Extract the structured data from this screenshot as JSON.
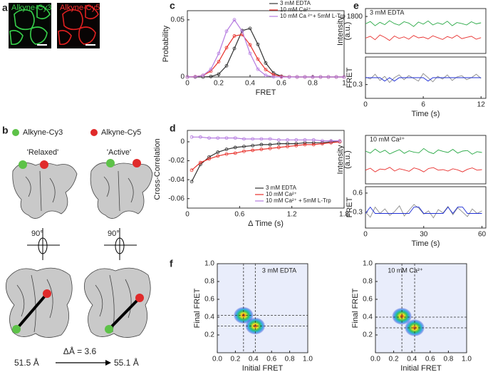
{
  "panel_labels": [
    "a",
    "b",
    "c",
    "d",
    "e",
    "f"
  ],
  "panel_a": {
    "channels": [
      "Alkyne-Cy3",
      "Alkyne-Cy5"
    ]
  },
  "panel_b": {
    "legend": [
      "Alkyne-Cy3",
      "Alkyne-Cy5"
    ],
    "states": [
      "'Relaxed'",
      "'Active'"
    ],
    "rotation": [
      "90°",
      "90°"
    ],
    "distances": [
      "51.5 Å",
      "55.1 Å"
    ],
    "change": "ΔÅ = 3.6"
  },
  "chart_data": [
    {
      "type": "line",
      "x_label": "FRET",
      "y_label": "Probability",
      "markers": true,
      "legend": "upper right",
      "x": [
        0,
        0.05,
        0.1,
        0.15,
        0.2,
        0.25,
        0.3,
        0.35,
        0.4,
        0.45,
        0.5,
        0.55,
        0.6,
        0.65,
        0.7,
        0.75,
        0.8,
        0.85,
        0.9,
        0.95,
        1
      ],
      "xlim": [
        0,
        1
      ],
      "xticks": [
        0,
        0.2,
        0.4,
        0.6,
        0.8,
        1
      ],
      "ylim": [
        0,
        0.058
      ],
      "yticks": [
        0,
        0.05
      ],
      "series": [
        {
          "name": "3 mM EDTA",
          "color": "#333333",
          "values": [
            0,
            0,
            0,
            0.0004,
            0.0025,
            0.0098,
            0.0249,
            0.0406,
            0.0425,
            0.0285,
            0.0122,
            0.0034,
            0.0006,
            0.0001,
            0,
            0,
            0,
            0,
            0,
            0,
            0
          ]
        },
        {
          "name": "10 mM Ca²⁺",
          "color": "#e8302a",
          "values": [
            0,
            0.0003,
            0.0014,
            0.0051,
            0.0134,
            0.0256,
            0.0359,
            0.0371,
            0.0281,
            0.0156,
            0.0064,
            0.0019,
            0.0004,
            0.0001,
            0,
            0,
            0,
            0,
            0,
            0,
            0
          ]
        },
        {
          "name": "10 mM Ca ²⁺+ 5mM L-Trp",
          "color": "#b57be0",
          "values": [
            0,
            0.0002,
            0.0014,
            0.0068,
            0.0206,
            0.04,
            0.05,
            0.04,
            0.0206,
            0.0068,
            0.0014,
            0.0002,
            0,
            0,
            0,
            0,
            0,
            0,
            0,
            0,
            0
          ]
        }
      ]
    },
    {
      "type": "line",
      "x_label": "Δ Time (s)",
      "y_label": "Cross-Correlation",
      "markers": true,
      "legend": "lower right",
      "x": [
        0.05,
        0.15,
        0.25,
        0.35,
        0.45,
        0.55,
        0.65,
        0.75,
        0.85,
        0.95,
        1.05,
        1.15,
        1.25,
        1.35,
        1.45,
        1.55,
        1.65,
        1.75
      ],
      "xlim": [
        0,
        1.8
      ],
      "xticks": [
        0,
        0.6,
        1.2,
        1.8
      ],
      "ylim": [
        -0.07,
        0.012
      ],
      "yticks": [
        -0.06,
        -0.04,
        -0.02,
        0
      ],
      "series": [
        {
          "name": "3 mM EDTA",
          "color": "#333333",
          "values": [
            -0.042,
            -0.024,
            -0.016,
            -0.011,
            -0.008,
            -0.006,
            -0.005,
            -0.004,
            -0.003,
            -0.003,
            -0.002,
            -0.002,
            -0.002,
            -0.001,
            -0.001,
            -0.001,
            0,
            0
          ]
        },
        {
          "name": "10 mM Ca²⁺",
          "color": "#e8302a",
          "values": [
            -0.03,
            -0.022,
            -0.018,
            -0.015,
            -0.013,
            -0.012,
            -0.01,
            -0.009,
            -0.008,
            -0.007,
            -0.006,
            -0.005,
            -0.004,
            -0.003,
            -0.003,
            -0.002,
            -0.001,
            0
          ]
        },
        {
          "name": "10 mM Ca²⁺ + 5mM L-Trp",
          "color": "#b57be0",
          "values": [
            0.005,
            0.005,
            0.004,
            0.004,
            0.004,
            0.004,
            0.003,
            0.003,
            0.003,
            0.003,
            0.002,
            0.002,
            0.002,
            0.002,
            0.002,
            0.001,
            0.001,
            0.001
          ]
        }
      ]
    },
    {
      "type": "line",
      "annotation": "3 mM EDTA",
      "y_label": [
        "Intensity",
        "(a.u.)"
      ],
      "x": [
        0,
        0.5,
        1,
        1.5,
        2,
        2.5,
        3,
        3.5,
        4,
        4.5,
        5,
        5.5,
        6,
        6.5,
        7,
        7.5,
        8,
        8.5,
        9,
        9.5,
        10,
        10.5,
        11,
        11.5,
        12
      ],
      "xlim": [
        0,
        12.5
      ],
      "ylim": [
        400,
        2100
      ],
      "yticks": [
        1800
      ],
      "series": [
        {
          "color": "#27a844",
          "values": [
            1520,
            1610,
            1450,
            1580,
            1490,
            1640,
            1530,
            1470,
            1600,
            1550,
            1420,
            1590,
            1510,
            1630,
            1480,
            1560,
            1500,
            1620,
            1450,
            1570,
            1530,
            1480,
            1600,
            1520,
            1560
          ]
        },
        {
          "color": "#e8312f",
          "values": [
            980,
            1050,
            920,
            1100,
            1010,
            890,
            1060,
            970,
            1030,
            940,
            1080,
            990,
            1020,
            950,
            1070,
            1000,
            930,
            1040,
            980,
            1090,
            960,
            1010,
            1050,
            940,
            1000
          ]
        }
      ]
    },
    {
      "type": "line",
      "x_label": "Time (s)",
      "y_label": "FRET",
      "x": [
        0,
        0.5,
        1,
        1.5,
        2,
        2.5,
        3,
        3.5,
        4,
        4.5,
        5,
        5.5,
        6,
        6.5,
        7,
        7.5,
        8,
        8.5,
        9,
        9.5,
        10,
        10.5,
        11,
        11.5,
        12
      ],
      "xlim": [
        0,
        12.5
      ],
      "xticks": [
        0,
        6,
        12
      ],
      "ylim": [
        0.1,
        0.7
      ],
      "yticks": [
        0.3
      ],
      "series": [
        {
          "color": "#8c8c8c",
          "values": [
            0.41,
            0.38,
            0.45,
            0.36,
            0.42,
            0.33,
            0.4,
            0.44,
            0.37,
            0.43,
            0.39,
            0.35,
            0.46,
            0.4,
            0.34,
            0.42,
            0.38,
            0.44,
            0.36,
            0.41,
            0.43,
            0.37,
            0.4,
            0.45,
            0.39
          ]
        },
        {
          "color": "#1f2fd6",
          "values": [
            0.4,
            0.4,
            0.4,
            0.4,
            0.35,
            0.4,
            0.35,
            0.4,
            0.4,
            0.4,
            0.4,
            0.4,
            0.4,
            0.35,
            0.4,
            0.4,
            0.4,
            0.4,
            0.4,
            0.4,
            0.4,
            0.4,
            0.4,
            0.4,
            0.4
          ]
        }
      ]
    },
    {
      "type": "line",
      "annotation": "10 mM Ca²⁺",
      "y_label": [
        "Intensity",
        "(a.u.)"
      ],
      "x": [
        0,
        2.5,
        5,
        7.5,
        10,
        12.5,
        15,
        17.5,
        20,
        22.5,
        25,
        27.5,
        30,
        32.5,
        35,
        37.5,
        40,
        42.5,
        45,
        47.5,
        50,
        52.5,
        55,
        57.5,
        60
      ],
      "xlim": [
        0,
        62
      ],
      "ylim": [
        200,
        1900
      ],
      "series": [
        {
          "color": "#27a844",
          "values": [
            1350,
            1280,
            1420,
            1300,
            1380,
            1250,
            1330,
            1400,
            1270,
            1360,
            1310,
            1290,
            1440,
            1320,
            1260,
            1390,
            1340,
            1300,
            1410,
            1280,
            1350,
            1370,
            1240,
            1330,
            1300
          ]
        },
        {
          "color": "#e8312f",
          "values": [
            680,
            750,
            620,
            720,
            700,
            780,
            650,
            730,
            690,
            640,
            760,
            710,
            620,
            740,
            770,
            680,
            700,
            650,
            730,
            690,
            620,
            710,
            760,
            680,
            700
          ]
        }
      ]
    },
    {
      "type": "line",
      "x_label": "Time (s)",
      "y_label": "FRET",
      "x": [
        0,
        2.5,
        5,
        7.5,
        10,
        12.5,
        15,
        17.5,
        20,
        22.5,
        25,
        27.5,
        30,
        32.5,
        35,
        37.5,
        40,
        42.5,
        45,
        47.5,
        50,
        52.5,
        55,
        57.5,
        60
      ],
      "xlim": [
        0,
        62
      ],
      "xticks": [
        0,
        30,
        60
      ],
      "ylim": [
        0.05,
        0.7
      ],
      "yticks": [
        0.3,
        0.6
      ],
      "series": [
        {
          "color": "#8c8c8c",
          "values": [
            0.3,
            0.22,
            0.38,
            0.28,
            0.35,
            0.25,
            0.31,
            0.4,
            0.24,
            0.33,
            0.42,
            0.36,
            0.27,
            0.32,
            0.21,
            0.34,
            0.29,
            0.39,
            0.26,
            0.37,
            0.3,
            0.23,
            0.35,
            0.28,
            0.32
          ]
        },
        {
          "color": "#1f2fd6",
          "values": [
            0.28,
            0.38,
            0.28,
            0.28,
            0.28,
            0.28,
            0.28,
            0.28,
            0.28,
            0.28,
            0.38,
            0.38,
            0.28,
            0.28,
            0.28,
            0.28,
            0.28,
            0.38,
            0.28,
            0.38,
            0.38,
            0.28,
            0.28,
            0.28,
            0.28
          ]
        }
      ]
    },
    {
      "type": "density",
      "annotation": "3 mM EDTA",
      "x_label": "Initial FRET",
      "y_label": "Final FRET",
      "xlim": [
        0,
        1
      ],
      "ylim": [
        0,
        1
      ],
      "xticks": [
        {
          "value": 0,
          "label": "0.0"
        },
        0.2,
        0.4,
        0.6,
        0.8,
        {
          "value": 1,
          "label": "1.0"
        }
      ],
      "yticks": [
        0.2,
        0.4,
        0.6,
        0.8,
        {
          "value": 1,
          "label": "1.0"
        }
      ],
      "peaks": {
        "x": [
          0.29,
          0.42
        ],
        "y": [
          0.42,
          0.3
        ]
      },
      "guides": {
        "x": [
          0.29,
          0.42
        ],
        "y": [
          0.42,
          0.3
        ]
      }
    },
    {
      "type": "density",
      "annotation": "10 mM Ca²⁺",
      "x_label": "Initial FRET",
      "y_label": "Final FRET",
      "xlim": [
        0,
        1
      ],
      "ylim": [
        0,
        1
      ],
      "xticks": [
        {
          "value": 0,
          "label": "0.0"
        },
        0.2,
        0.4,
        0.6,
        0.8,
        {
          "value": 1,
          "label": "1.0"
        }
      ],
      "yticks": [
        0.2,
        0.4,
        0.6,
        0.8,
        {
          "value": 1,
          "label": "1.0"
        }
      ],
      "peaks": {
        "x": [
          0.29,
          0.43
        ],
        "y": [
          0.41,
          0.28
        ]
      },
      "guides": {
        "x": [
          0.29,
          0.43
        ],
        "y": [
          0.4,
          0.28
        ]
      }
    }
  ]
}
